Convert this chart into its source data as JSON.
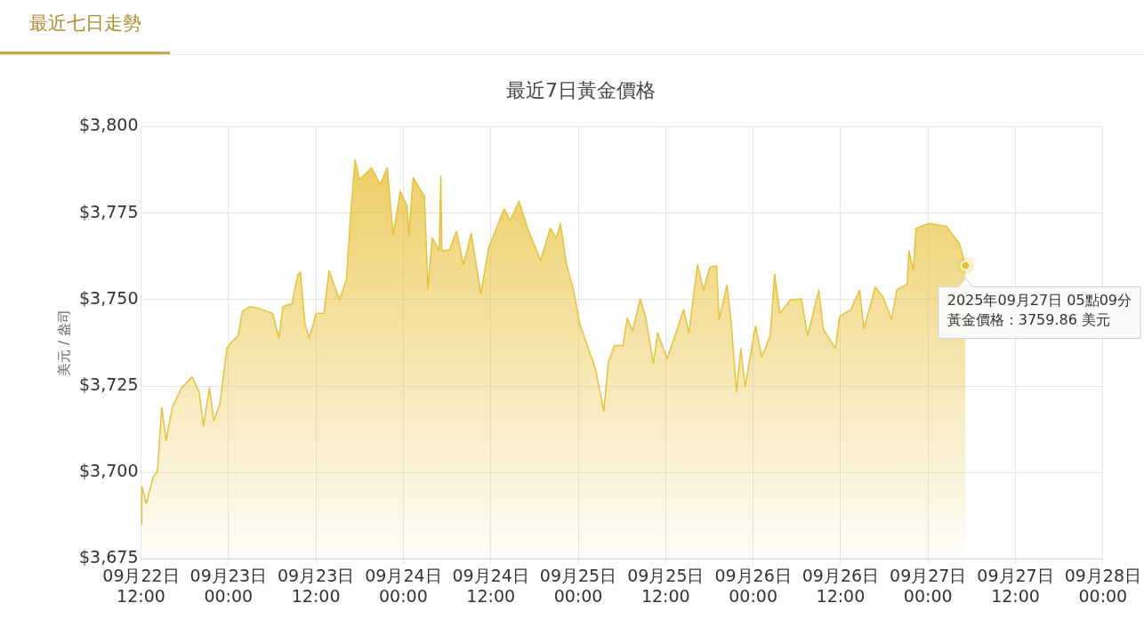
{
  "chart_data": {
    "type": "area",
    "title": "最近7日黃金價格",
    "ylabel": "美元 / 盎司",
    "annotations": [
      "最近七日走勢",
      {
        "text": "2025年09月27日 05點09分",
        "x": "2025-09-27T05:09",
        "y": 3759.86
      },
      "黃金價格：3759.86 美元"
    ],
    "x": [
      "2025-09-22T12:05",
      "2025-09-22T12:07",
      "2025-09-22T12:43",
      "2025-09-22T13:40",
      "2025-09-22T14:16",
      "2025-09-22T14:51",
      "2025-09-22T15:27",
      "2025-09-22T16:17",
      "2025-09-22T17:35",
      "2025-09-22T19:01",
      "2025-09-22T19:58",
      "2025-09-22T20:34",
      "2025-09-22T21:24",
      "2025-09-22T22:00",
      "2025-09-22T22:49",
      "2025-09-22T23:47",
      "2025-09-23T00:22",
      "2025-09-23T01:19",
      "2025-09-23T01:55",
      "2025-09-23T02:59",
      "2025-09-23T04:11",
      "2025-09-23T06:05",
      "2025-09-23T06:55",
      "2025-09-23T07:30",
      "2025-09-23T08:42",
      "2025-09-23T09:32",
      "2025-09-23T09:53",
      "2025-09-23T10:29",
      "2025-09-23T11:05",
      "2025-09-23T12:02",
      "2025-09-23T13:06",
      "2025-09-23T13:49",
      "2025-09-23T15:14",
      "2025-09-23T16:11",
      "2025-09-23T16:47",
      "2025-09-23T17:23",
      "2025-09-23T17:59",
      "2025-09-23T19:38",
      "2025-09-23T20:50",
      "2025-09-23T21:47",
      "2025-09-23T22:37",
      "2025-09-23T23:34",
      "2025-09-24T00:31",
      "2025-09-24T00:45",
      "2025-09-24T01:21",
      "2025-09-24T02:54",
      "2025-09-24T03:22",
      "2025-09-24T03:58",
      "2025-09-24T04:55",
      "2025-09-24T05:09",
      "2025-09-24T05:17",
      "2025-09-24T06:21",
      "2025-09-24T07:18",
      "2025-09-24T08:15",
      "2025-09-24T09:19",
      "2025-09-24T10:38",
      "2025-09-24T11:42",
      "2025-09-24T13:50",
      "2025-09-24T14:40",
      "2025-09-24T15:52",
      "2025-09-24T17:03",
      "2025-09-24T18:50",
      "2025-09-24T20:09",
      "2025-09-24T20:59",
      "2025-09-24T21:34",
      "2025-09-24T22:24",
      "2025-09-24T23:21",
      "2025-09-25T00:11",
      "2025-09-25T01:23",
      "2025-09-25T02:20",
      "2025-09-25T03:31",
      "2025-09-25T04:07",
      "2025-09-25T04:57",
      "2025-09-25T06:08",
      "2025-09-25T06:44",
      "2025-09-25T07:27",
      "2025-09-25T08:31",
      "2025-09-25T09:14",
      "2025-09-25T10:18",
      "2025-09-25T10:54",
      "2025-09-25T12:12",
      "2025-09-25T13:17",
      "2025-09-25T14:28",
      "2025-09-25T15:11",
      "2025-09-25T16:22",
      "2025-09-25T17:12",
      "2025-09-25T18:02",
      "2025-09-25T18:59",
      "2025-09-25T19:20",
      "2025-09-25T20:25",
      "2025-09-25T21:00",
      "2025-09-25T21:43",
      "2025-09-25T22:19",
      "2025-09-25T22:54",
      "2025-09-26T00:20",
      "2025-09-26T01:10",
      "2025-09-26T02:21",
      "2025-09-26T02:57",
      "2025-09-26T03:40",
      "2025-09-26T05:06",
      "2025-09-26T06:38",
      "2025-09-26T07:28",
      "2025-09-26T09:01",
      "2025-09-26T09:37",
      "2025-09-26T11:17",
      "2025-09-26T11:52",
      "2025-09-26T13:25",
      "2025-09-26T14:37",
      "2025-09-26T15:12",
      "2025-09-26T16:45",
      "2025-09-26T17:49",
      "2025-09-26T19:01",
      "2025-09-26T19:43",
      "2025-09-26T21:09",
      "2025-09-26T21:23",
      "2025-09-26T21:59",
      "2025-09-26T22:21",
      "2025-09-27T00:08",
      "2025-09-27T02:30",
      "2025-09-27T04:17",
      "2025-09-27T05:09"
    ],
    "series": [
      {
        "color": "#e8c13a",
        "values": [
          3685,
          3696,
          3691,
          3698.5,
          3700.5,
          3718.8,
          3709.2,
          3718.8,
          3724.5,
          3727.6,
          3723.4,
          3713.5,
          3724.5,
          3714.9,
          3719.7,
          3735.8,
          3737.5,
          3739.5,
          3746.6,
          3748,
          3747.4,
          3746,
          3738.9,
          3748,
          3748.8,
          3757.3,
          3757.9,
          3743.2,
          3738.9,
          3746,
          3746,
          3758.4,
          3749.9,
          3755.6,
          3774.8,
          3790.4,
          3784.7,
          3788.1,
          3783.3,
          3788.1,
          3768.6,
          3781.3,
          3777.1,
          3768.3,
          3785.3,
          3779.9,
          3753.1,
          3767.8,
          3764.1,
          3785.6,
          3764.1,
          3764.4,
          3769.7,
          3760.1,
          3769.2,
          3751.6,
          3764.9,
          3776.2,
          3772.9,
          3778.5,
          3770.6,
          3761.3,
          3770.6,
          3767.8,
          3772,
          3760.1,
          3752.8,
          3743.2,
          3735.8,
          3730.2,
          3717.7,
          3731.6,
          3736.7,
          3736.7,
          3744.6,
          3740.9,
          3750.2,
          3745.1,
          3731.6,
          3740.3,
          3733,
          3739.5,
          3747.1,
          3740.3,
          3760.1,
          3752.8,
          3759.3,
          3759.8,
          3744.3,
          3754.2,
          3743.2,
          3723.4,
          3735.8,
          3724.8,
          3742.3,
          3733.3,
          3739.5,
          3757.3,
          3746,
          3749.9,
          3750.2,
          3739.5,
          3752.8,
          3741.5,
          3735.8,
          3745.1,
          3747.1,
          3752.8,
          3741.5,
          3753.6,
          3750.8,
          3744.3,
          3752.8,
          3754.5,
          3764.1,
          3758.4,
          3770.6,
          3772,
          3771.2,
          3766.3,
          3759.86
        ]
      }
    ],
    "xlim": [
      "2025-09-22T12:00",
      "2025-09-28T00:00"
    ],
    "xticks": [
      {
        "value": "2025-09-22T12:00",
        "label": "09月22日 12:00"
      },
      {
        "value": "2025-09-23T00:00",
        "label": "09月23日 00:00"
      },
      {
        "value": "2025-09-23T12:00",
        "label": "09月23日 12:00"
      },
      {
        "value": "2025-09-24T00:00",
        "label": "09月24日 00:00"
      },
      {
        "value": "2025-09-24T12:00",
        "label": "09月24日 12:00"
      },
      {
        "value": "2025-09-25T00:00",
        "label": "09月25日 00:00"
      },
      {
        "value": "2025-09-25T12:00",
        "label": "09月25日 12:00"
      },
      {
        "value": "2025-09-26T00:00",
        "label": "09月26日 00:00"
      },
      {
        "value": "2025-09-26T12:00",
        "label": "09月26日 12:00"
      },
      {
        "value": "2025-09-27T00:00",
        "label": "09月27日 00:00"
      },
      {
        "value": "2025-09-27T12:00",
        "label": "09月27日 12:00"
      },
      {
        "value": "2025-09-28T00:00",
        "label": "09月28日 00:00"
      }
    ],
    "ylim": [
      3675,
      3800
    ],
    "yticks": [
      {
        "value": 3675,
        "label": "$3,675"
      },
      {
        "value": 3700,
        "label": "$3,700"
      },
      {
        "value": 3725,
        "label": "$3,725"
      },
      {
        "value": 3750,
        "label": "$3,750"
      },
      {
        "value": 3775,
        "label": "$3,775"
      },
      {
        "value": 3800,
        "label": "$3,800"
      }
    ],
    "grid": true,
    "legend": false,
    "marker": "none",
    "line_style": "solid"
  }
}
